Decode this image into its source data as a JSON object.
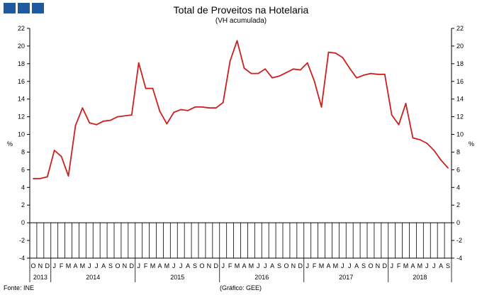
{
  "header": {
    "title": "Total de Proveitos na Hotelaria",
    "subtitle": "(VH acumulada)"
  },
  "footer": {
    "source": "Fonte: INE",
    "credit": "(Gráfico: GEE)"
  },
  "colors": {
    "line": "#cc1f1f",
    "logo": "#1f5a9e"
  },
  "chart_data": {
    "type": "line",
    "title": "Total de Proveitos na Hotelaria",
    "subtitle": "(VH acumulada)",
    "ylabel": "%",
    "ylabel_right": "%",
    "ylim": [
      -4,
      22
    ],
    "yticks": [
      -4,
      -2,
      0,
      2,
      4,
      6,
      8,
      10,
      12,
      14,
      16,
      18,
      20,
      22
    ],
    "categories": [
      "O",
      "N",
      "D",
      "J",
      "F",
      "M",
      "A",
      "M",
      "J",
      "J",
      "A",
      "S",
      "O",
      "N",
      "D",
      "J",
      "F",
      "M",
      "A",
      "M",
      "J",
      "J",
      "A",
      "S",
      "O",
      "N",
      "D",
      "J",
      "F",
      "M",
      "A",
      "M",
      "J",
      "J",
      "A",
      "S",
      "O",
      "N",
      "D",
      "J",
      "F",
      "M",
      "A",
      "M",
      "J",
      "J",
      "A",
      "S",
      "O",
      "N",
      "D",
      "J",
      "F",
      "M",
      "A",
      "M",
      "J",
      "J",
      "A",
      "S"
    ],
    "years": [
      {
        "label": "2013",
        "start": 0,
        "count": 3
      },
      {
        "label": "2014",
        "start": 3,
        "count": 12
      },
      {
        "label": "2015",
        "start": 15,
        "count": 12
      },
      {
        "label": "2016",
        "start": 27,
        "count": 12
      },
      {
        "label": "2017",
        "start": 39,
        "count": 12
      },
      {
        "label": "2018",
        "start": 51,
        "count": 9
      }
    ],
    "values": [
      5.0,
      5.0,
      5.2,
      8.2,
      7.5,
      5.3,
      11.0,
      13.0,
      11.3,
      11.1,
      11.5,
      11.6,
      12.0,
      12.1,
      12.2,
      18.1,
      15.2,
      15.2,
      12.6,
      11.2,
      12.5,
      12.8,
      12.7,
      13.1,
      13.1,
      13.0,
      13.0,
      13.6,
      18.3,
      20.6,
      17.5,
      16.9,
      16.9,
      17.4,
      16.4,
      16.6,
      17.0,
      17.4,
      17.3,
      18.1,
      16.0,
      13.1,
      19.3,
      19.2,
      18.7,
      17.5,
      16.4,
      16.7,
      16.9,
      16.8,
      16.8,
      12.2,
      11.1,
      13.5,
      9.6,
      9.4,
      9.0,
      8.2,
      7.1,
      6.2
    ],
    "grid": false,
    "legend": "none"
  }
}
